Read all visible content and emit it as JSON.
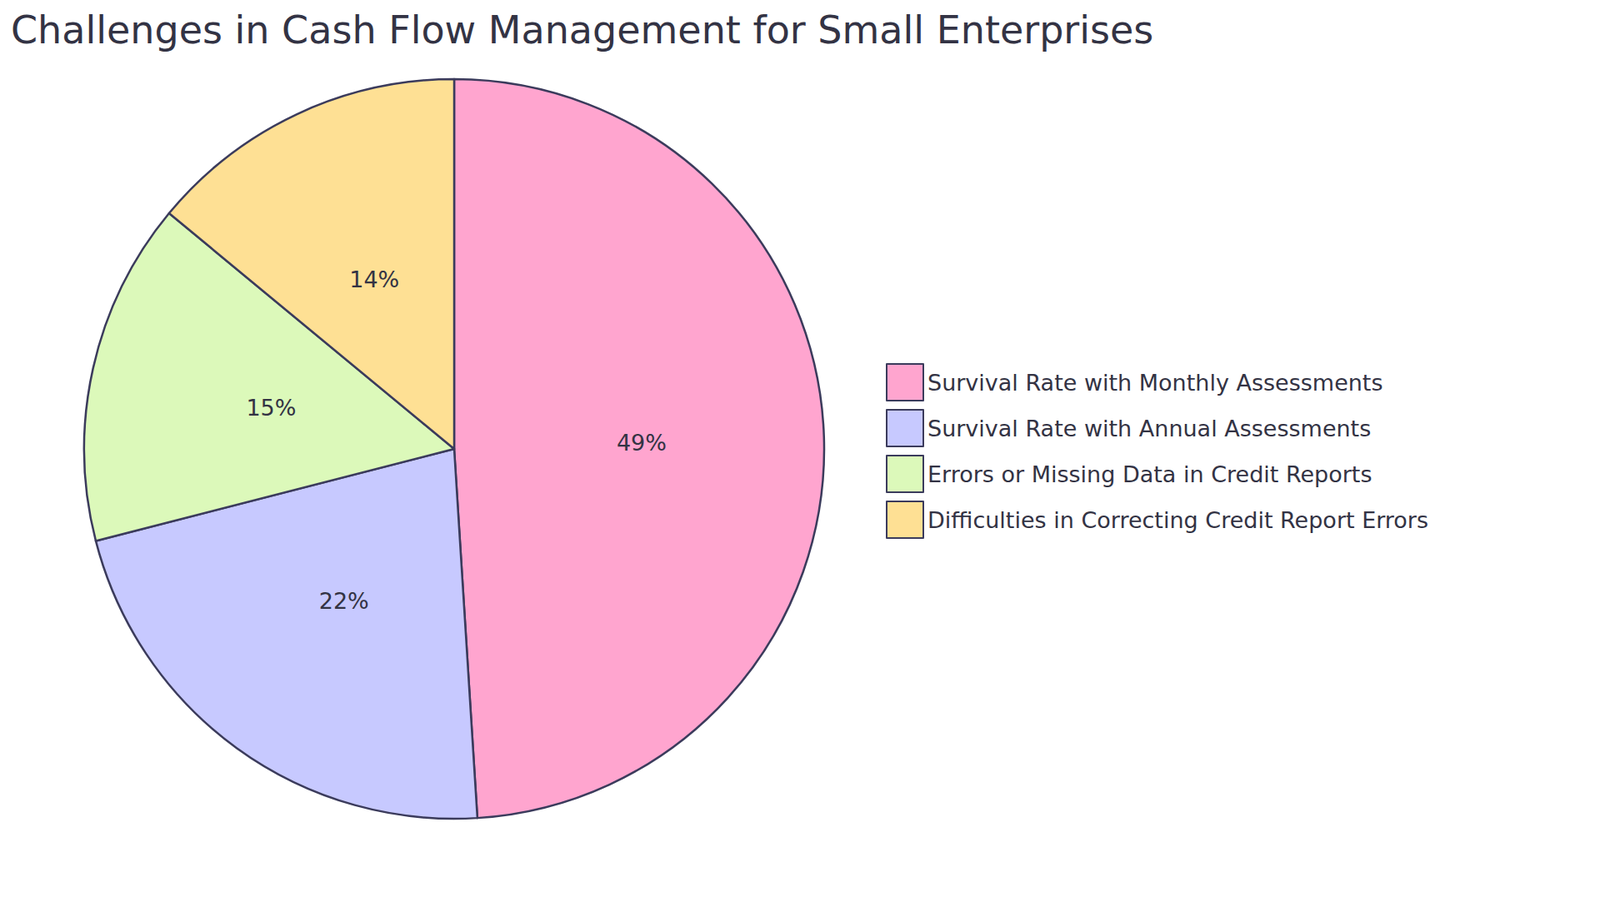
{
  "chart_data": {
    "type": "pie",
    "title": "Challenges in Cash Flow Management for Small Enterprises",
    "categories": [
      "Survival Rate with Monthly Assessments",
      "Survival Rate with Annual Assessments",
      "Errors or Missing Data in Credit Reports",
      "Difficulties in Correcting Credit Report Errors"
    ],
    "values": [
      49,
      22,
      15,
      14
    ],
    "value_labels": [
      "49%",
      "22%",
      "15%",
      "14%"
    ],
    "colors": [
      "#ffa5cf",
      "#c7c9ff",
      "#dcf9ba",
      "#fee094"
    ],
    "data_labels": true,
    "legend": "right"
  }
}
